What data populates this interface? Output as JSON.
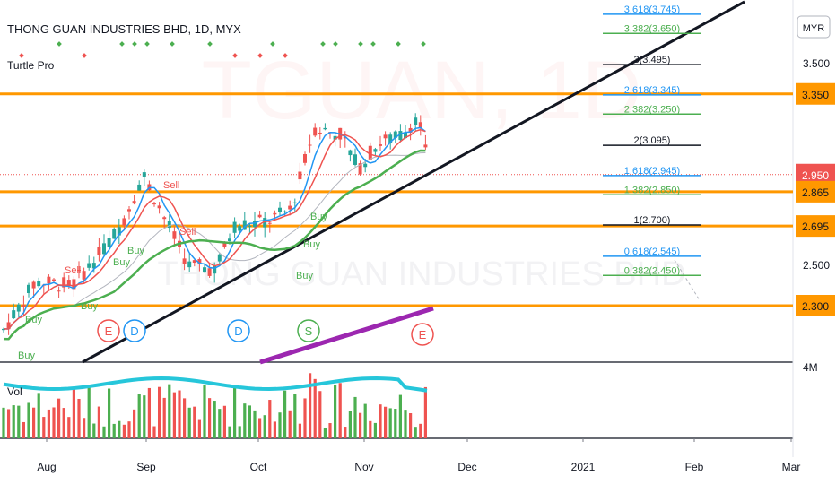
{
  "header": {
    "title": "THONG GUAN INDUSTRIES BHD, 1D, MYX",
    "indicator": "Turtle Pro",
    "currency": "MYR"
  },
  "watermark": {
    "symbol": "TGUAN, 1D",
    "name": "THONG GUAN INDUSTRIES BHD"
  },
  "volume_label": "Vol",
  "volume_axis_label": "4M",
  "colors": {
    "orange": "#ff9800",
    "red": "#ef5350",
    "green": "#4caf50",
    "blue": "#2196f3",
    "purple": "#9c27b0",
    "black": "#131722",
    "cyan": "#26c6da"
  },
  "chart_data": {
    "type": "candlestick",
    "title": "THONG GUAN INDUSTRIES BHD, 1D, MYX",
    "x_ticks": [
      "Aug",
      "Sep",
      "Oct",
      "Nov",
      "Dec",
      "2021",
      "Feb",
      "Mar"
    ],
    "y_ticks": [
      "3.500",
      "2.500"
    ],
    "price_labels": [
      {
        "value": "3.350",
        "color": "#ff9800"
      },
      {
        "value": "2.950",
        "color": "#ef5350"
      },
      {
        "value": "2.865",
        "color": "#ff9800"
      },
      {
        "value": "2.695",
        "color": "#ff9800"
      },
      {
        "value": "2.300",
        "color": "#ff9800"
      }
    ],
    "horizontal_levels": [
      3.35,
      2.865,
      2.695,
      2.3
    ],
    "last_price": 2.95,
    "fib_levels": [
      {
        "label": "3.618(3.745)",
        "value": 3.745,
        "color": "#2196f3"
      },
      {
        "label": "3.382(3.650)",
        "value": 3.65,
        "color": "#4caf50"
      },
      {
        "label": "3(3.495)",
        "value": 3.495,
        "color": "#131722"
      },
      {
        "label": "2.618(3.345)",
        "value": 3.345,
        "color": "#2196f3"
      },
      {
        "label": "2.382(3.250)",
        "value": 3.25,
        "color": "#4caf50"
      },
      {
        "label": "2(3.095)",
        "value": 3.095,
        "color": "#131722"
      },
      {
        "label": "1.618(2.945)",
        "value": 2.945,
        "color": "#2196f3"
      },
      {
        "label": "1.382(2.850)",
        "value": 2.85,
        "color": "#4caf50"
      },
      {
        "label": "1(2.700)",
        "value": 2.7,
        "color": "#131722"
      },
      {
        "label": "0.618(2.545)",
        "value": 2.545,
        "color": "#2196f3"
      },
      {
        "label": "0.382(2.450)",
        "value": 2.45,
        "color": "#4caf50"
      }
    ],
    "signals": [
      {
        "text": "Sell",
        "color": "#ef5350"
      },
      {
        "text": "Sell",
        "color": "#ef5350"
      },
      {
        "text": "Sell",
        "color": "#ef5350"
      },
      {
        "text": "Buy",
        "color": "#4caf50"
      },
      {
        "text": "Buy",
        "color": "#4caf50"
      },
      {
        "text": "Buy",
        "color": "#4caf50"
      },
      {
        "text": "Buy",
        "color": "#4caf50"
      },
      {
        "text": "Buy",
        "color": "#4caf50"
      },
      {
        "text": "Buy",
        "color": "#4caf50"
      },
      {
        "text": "Buy",
        "color": "#4caf50"
      },
      {
        "text": "Buy",
        "color": "#4caf50"
      },
      {
        "text": "Buy",
        "color": "#4caf50"
      }
    ],
    "event_markers": [
      {
        "text": "E",
        "color": "#ef5350"
      },
      {
        "text": "D",
        "color": "#2196f3"
      },
      {
        "text": "D",
        "color": "#2196f3"
      },
      {
        "text": "S",
        "color": "#4caf50"
      },
      {
        "text": "E",
        "color": "#ef5350"
      }
    ]
  }
}
